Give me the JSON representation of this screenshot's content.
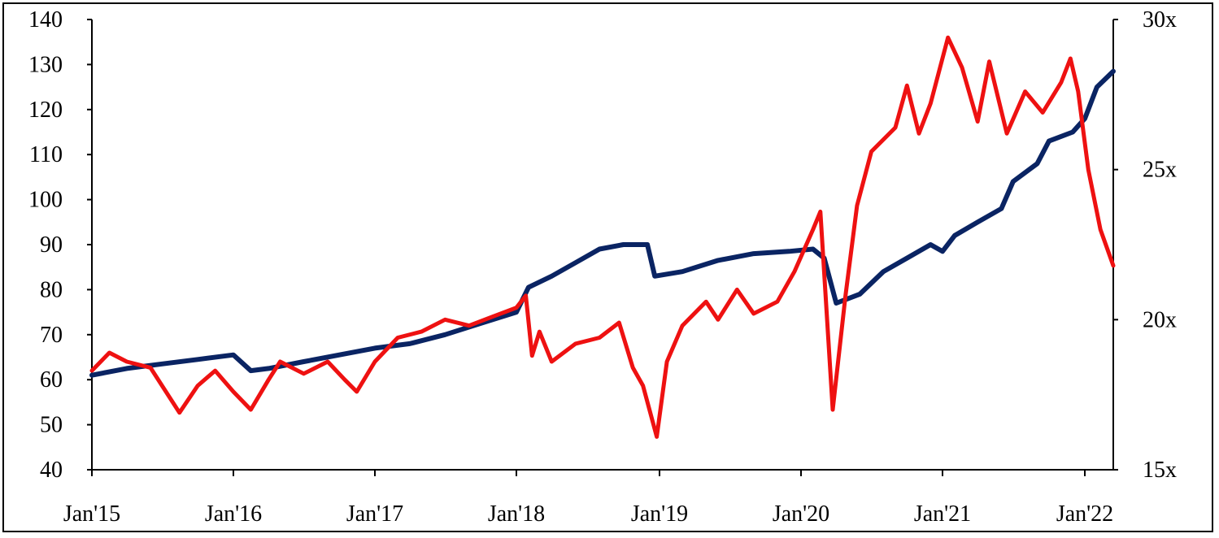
{
  "chart_data": {
    "type": "line",
    "title": "",
    "xlabel": "",
    "ylabel": "",
    "x_ticks": [
      "Jan'15",
      "Jan'16",
      "Jan'17",
      "Jan'18",
      "Jan'19",
      "Jan'20",
      "Jan'21",
      "Jan'22"
    ],
    "y_left": {
      "ylim": [
        40,
        140
      ],
      "ticks": [
        "40",
        "50",
        "60",
        "70",
        "80",
        "90",
        "100",
        "110",
        "120",
        "130",
        "140"
      ]
    },
    "y_right": {
      "ylim": [
        15,
        30
      ],
      "ticks": [
        "15x",
        "20x",
        "25x",
        "30x"
      ]
    },
    "grid": false,
    "legend": "none",
    "series": [
      {
        "axis": "left",
        "color": "#0a2463",
        "points": [
          [
            "2015-01-01",
            61
          ],
          [
            "2015-04-01",
            62.5
          ],
          [
            "2015-07-01",
            63.5
          ],
          [
            "2015-10-01",
            64.5
          ],
          [
            "2016-01-01",
            65.5
          ],
          [
            "2016-02-15",
            62
          ],
          [
            "2016-04-01",
            62.5
          ],
          [
            "2016-07-01",
            64
          ],
          [
            "2016-10-01",
            65.5
          ],
          [
            "2017-01-01",
            67
          ],
          [
            "2017-04-01",
            68
          ],
          [
            "2017-07-01",
            70
          ],
          [
            "2017-10-01",
            72.5
          ],
          [
            "2018-01-01",
            75
          ],
          [
            "2018-02-01",
            80.5
          ],
          [
            "2018-04-01",
            83
          ],
          [
            "2018-06-01",
            86
          ],
          [
            "2018-08-01",
            89
          ],
          [
            "2018-10-01",
            90
          ],
          [
            "2018-12-01",
            90
          ],
          [
            "2018-12-20",
            83
          ],
          [
            "2019-03-01",
            84
          ],
          [
            "2019-06-01",
            86.5
          ],
          [
            "2019-09-01",
            88
          ],
          [
            "2019-12-01",
            88.5
          ],
          [
            "2020-02-01",
            89
          ],
          [
            "2020-03-01",
            87
          ],
          [
            "2020-04-01",
            77
          ],
          [
            "2020-06-01",
            79
          ],
          [
            "2020-08-01",
            84
          ],
          [
            "2020-10-01",
            87
          ],
          [
            "2020-12-01",
            90
          ],
          [
            "2021-01-01",
            88.5
          ],
          [
            "2021-02-01",
            92
          ],
          [
            "2021-04-01",
            95
          ],
          [
            "2021-06-01",
            98
          ],
          [
            "2021-07-01",
            104
          ],
          [
            "2021-09-01",
            108
          ],
          [
            "2021-10-01",
            113
          ],
          [
            "2021-12-01",
            115
          ],
          [
            "2022-01-01",
            118
          ],
          [
            "2022-02-01",
            125
          ],
          [
            "2022-03-15",
            128.5
          ]
        ]
      },
      {
        "axis": "right",
        "color": "#ee1111",
        "points": [
          [
            "2015-01-01",
            18.3
          ],
          [
            "2015-02-15",
            18.9
          ],
          [
            "2015-04-01",
            18.6
          ],
          [
            "2015-06-01",
            18.4
          ],
          [
            "2015-08-15",
            16.9
          ],
          [
            "2015-10-01",
            17.8
          ],
          [
            "2015-11-15",
            18.3
          ],
          [
            "2016-01-01",
            17.6
          ],
          [
            "2016-02-15",
            17.0
          ],
          [
            "2016-04-01",
            18.0
          ],
          [
            "2016-05-01",
            18.6
          ],
          [
            "2016-07-01",
            18.2
          ],
          [
            "2016-09-01",
            18.6
          ],
          [
            "2016-10-15",
            18.0
          ],
          [
            "2016-11-15",
            17.6
          ],
          [
            "2017-01-01",
            18.6
          ],
          [
            "2017-03-01",
            19.4
          ],
          [
            "2017-05-01",
            19.6
          ],
          [
            "2017-07-01",
            20.0
          ],
          [
            "2017-09-01",
            19.8
          ],
          [
            "2017-11-01",
            20.1
          ],
          [
            "2018-01-01",
            20.4
          ],
          [
            "2018-01-25",
            20.8
          ],
          [
            "2018-02-10",
            18.8
          ],
          [
            "2018-03-01",
            19.6
          ],
          [
            "2018-04-01",
            18.6
          ],
          [
            "2018-06-01",
            19.2
          ],
          [
            "2018-08-01",
            19.4
          ],
          [
            "2018-09-20",
            19.9
          ],
          [
            "2018-10-25",
            18.4
          ],
          [
            "2018-11-20",
            17.8
          ],
          [
            "2018-12-25",
            16.1
          ],
          [
            "2019-01-20",
            18.6
          ],
          [
            "2019-03-01",
            19.8
          ],
          [
            "2019-05-01",
            20.6
          ],
          [
            "2019-06-01",
            20.0
          ],
          [
            "2019-07-20",
            21.0
          ],
          [
            "2019-09-01",
            20.2
          ],
          [
            "2019-11-01",
            20.6
          ],
          [
            "2019-12-15",
            21.6
          ],
          [
            "2020-02-01",
            23.0
          ],
          [
            "2020-02-20",
            23.6
          ],
          [
            "2020-03-23",
            17.0
          ],
          [
            "2020-04-25",
            20.8
          ],
          [
            "2020-05-25",
            23.8
          ],
          [
            "2020-07-01",
            25.6
          ],
          [
            "2020-09-01",
            26.4
          ],
          [
            "2020-10-01",
            27.8
          ],
          [
            "2020-11-01",
            26.2
          ],
          [
            "2020-12-01",
            27.2
          ],
          [
            "2021-01-15",
            29.4
          ],
          [
            "2021-02-20",
            28.4
          ],
          [
            "2021-04-01",
            26.6
          ],
          [
            "2021-05-01",
            28.6
          ],
          [
            "2021-06-15",
            26.2
          ],
          [
            "2021-08-01",
            27.6
          ],
          [
            "2021-09-15",
            26.9
          ],
          [
            "2021-11-01",
            27.9
          ],
          [
            "2021-11-25",
            28.7
          ],
          [
            "2021-12-15",
            27.6
          ],
          [
            "2022-01-10",
            25.0
          ],
          [
            "2022-02-10",
            23.0
          ],
          [
            "2022-03-15",
            21.8
          ]
        ]
      }
    ]
  }
}
